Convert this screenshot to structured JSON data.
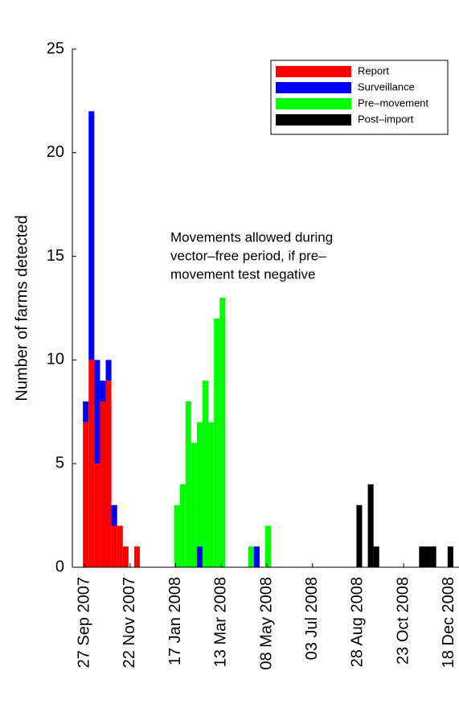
{
  "chart_data": {
    "type": "histogram",
    "ylabel": "Number of farms detected",
    "annotation": [
      "Movements allowed during",
      "vector–free period, if pre–",
      "movement test negative"
    ],
    "bins": [
      "2007-09-25",
      "2007-10-02",
      "2007-10-09",
      "2007-10-16",
      "2007-10-23",
      "2007-10-30",
      "2007-11-06",
      "2007-11-13",
      "2007-11-20",
      "2007-11-27",
      "2007-12-04",
      "2007-12-11",
      "2007-12-18",
      "2007-12-25",
      "2008-01-01",
      "2008-01-08",
      "2008-01-15",
      "2008-01-22",
      "2008-01-29",
      "2008-02-05",
      "2008-02-12",
      "2008-02-19",
      "2008-02-26",
      "2008-03-04",
      "2008-03-11",
      "2008-03-18",
      "2008-03-25",
      "2008-04-01",
      "2008-04-08",
      "2008-04-15",
      "2008-04-22",
      "2008-04-29",
      "2008-05-06",
      "2008-05-13",
      "2008-05-20",
      "2008-05-27",
      "2008-06-03",
      "2008-06-10",
      "2008-06-17",
      "2008-06-24",
      "2008-07-01",
      "2008-07-08",
      "2008-07-15",
      "2008-07-22",
      "2008-07-29",
      "2008-08-05",
      "2008-08-12",
      "2008-08-19",
      "2008-08-26",
      "2008-09-02",
      "2008-09-09",
      "2008-09-16",
      "2008-09-23",
      "2008-09-30",
      "2008-10-07",
      "2008-10-14",
      "2008-10-21",
      "2008-10-28",
      "2008-11-04",
      "2008-11-11",
      "2008-11-18",
      "2008-11-25",
      "2008-12-02",
      "2008-12-09",
      "2008-12-16",
      "2008-12-23",
      "2008-12-30"
    ],
    "series": [
      {
        "name": "Report",
        "color": "#ff0000",
        "values": [
          7,
          10,
          5,
          8,
          9,
          2,
          2,
          1,
          0,
          1,
          0,
          0,
          0,
          0,
          0,
          0,
          0,
          0,
          0,
          0,
          0,
          0,
          0,
          0,
          0,
          0,
          0,
          0,
          0,
          0,
          0,
          0,
          0,
          0,
          0,
          0,
          0,
          0,
          0,
          0,
          0,
          0,
          0,
          0,
          0,
          0,
          0,
          0,
          0,
          0,
          0,
          0,
          0,
          0,
          0,
          0,
          0,
          0,
          0,
          0,
          0,
          0,
          0,
          0,
          0,
          0
        ]
      },
      {
        "name": "Surveillance",
        "color": "#0000ff",
        "values": [
          1,
          12,
          5,
          1,
          1,
          1,
          0,
          0,
          0,
          0,
          0,
          0,
          0,
          0,
          0,
          0,
          0,
          0,
          0,
          0,
          1,
          0,
          0,
          0,
          0,
          0,
          0,
          0,
          0,
          0,
          1,
          0,
          0,
          0,
          0,
          0,
          0,
          0,
          0,
          0,
          0,
          0,
          0,
          0,
          0,
          0,
          0,
          0,
          0,
          0,
          0,
          0,
          0,
          0,
          0,
          0,
          0,
          0,
          0,
          0,
          0,
          0,
          0,
          0,
          0,
          0
        ]
      },
      {
        "name": "Pre–movement",
        "color": "#00ff00",
        "values": [
          0,
          0,
          0,
          0,
          0,
          0,
          0,
          0,
          0,
          0,
          0,
          0,
          0,
          0,
          0,
          0,
          3,
          4,
          8,
          6,
          6,
          9,
          7,
          12,
          13,
          0,
          0,
          0,
          0,
          1,
          0,
          0,
          2,
          0,
          0,
          0,
          0,
          0,
          0,
          0,
          0,
          0,
          0,
          0,
          0,
          0,
          0,
          0,
          0,
          0,
          0,
          0,
          0,
          0,
          0,
          0,
          0,
          0,
          0,
          0,
          0,
          0,
          0,
          0,
          0,
          0
        ]
      },
      {
        "name": "Post–import",
        "color": "#000000",
        "values": [
          0,
          0,
          0,
          0,
          0,
          0,
          0,
          0,
          0,
          0,
          0,
          0,
          0,
          0,
          0,
          0,
          0,
          0,
          0,
          0,
          0,
          0,
          0,
          0,
          0,
          0,
          0,
          0,
          0,
          0,
          0,
          0,
          0,
          0,
          0,
          0,
          0,
          0,
          0,
          0,
          0,
          0,
          0,
          0,
          0,
          0,
          0,
          0,
          3,
          0,
          4,
          1,
          0,
          0,
          0,
          0,
          0,
          0,
          0,
          1,
          1,
          1,
          0,
          0,
          1,
          0
        ]
      }
    ],
    "xlim": [
      "2007-09-12",
      "2008-12-30"
    ],
    "xticks": [
      {
        "value": "2007-09-27",
        "label": "27 Sep 2007"
      },
      {
        "value": "2007-11-22",
        "label": "22 Nov 2007"
      },
      {
        "value": "2008-01-17",
        "label": "17 Jan 2008"
      },
      {
        "value": "2008-03-13",
        "label": "13 Mar 2008"
      },
      {
        "value": "2008-05-08",
        "label": "08 May 2008"
      },
      {
        "value": "2008-07-03",
        "label": "03 Jul 2008"
      },
      {
        "value": "2008-08-28",
        "label": "28 Aug 2008"
      },
      {
        "value": "2008-10-23",
        "label": "23 Oct 2008"
      },
      {
        "value": "2008-12-18",
        "label": "18 Dec 2008"
      }
    ],
    "ylim": [
      0,
      25
    ],
    "yticks": [
      0,
      5,
      10,
      15,
      20,
      25
    ],
    "legend": "upper right",
    "stacked": true
  }
}
